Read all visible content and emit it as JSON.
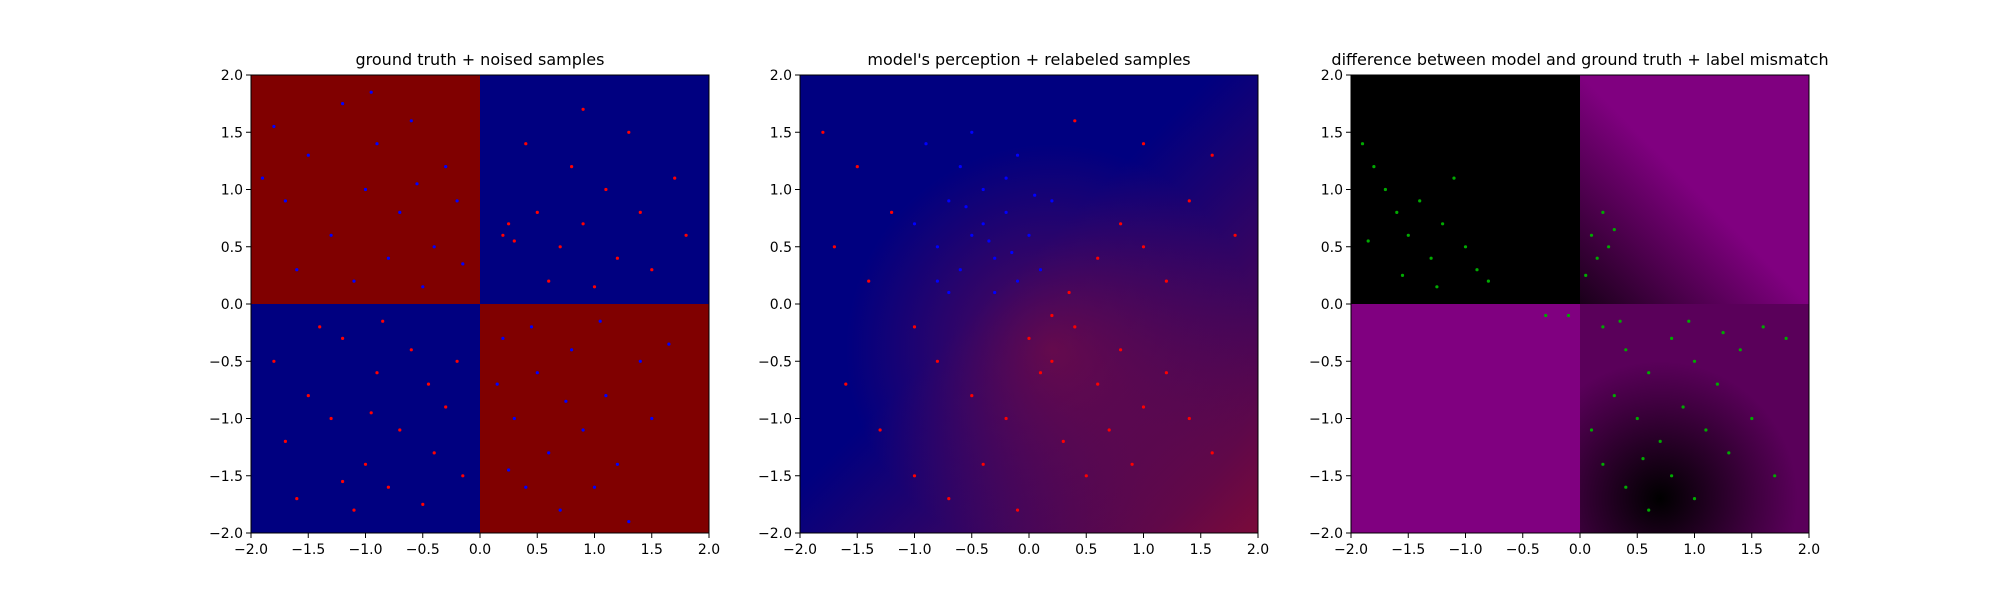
{
  "chart_data": [
    {
      "type": "scatter",
      "title": "ground truth + noised samples",
      "xlabel": "",
      "ylabel": "",
      "xlim": [
        -2.0,
        2.0
      ],
      "ylim": [
        -2.0,
        2.0
      ],
      "xticks": [
        "−2.0",
        "−1.5",
        "−1.0",
        "−0.5",
        "0.0",
        "0.5",
        "1.0",
        "1.5",
        "2.0"
      ],
      "yticks": [
        "2.0",
        "1.5",
        "1.0",
        "0.5",
        "0.0",
        "−0.5",
        "−1.0",
        "−1.5",
        "−2.0"
      ],
      "grid": false,
      "background": {
        "kind": "quadrants",
        "top_left": "#800000",
        "top_right": "#000080",
        "bottom_left": "#000080",
        "bottom_right": "#800000"
      },
      "series": [
        {
          "color": "#0000ff",
          "points": [
            [
              -1.8,
              1.55
            ],
            [
              -1.5,
              1.3
            ],
            [
              -1.2,
              1.75
            ],
            [
              -0.9,
              1.4
            ],
            [
              -0.6,
              1.6
            ],
            [
              -0.3,
              1.2
            ],
            [
              -1.7,
              0.9
            ],
            [
              -1.3,
              0.6
            ],
            [
              -1.0,
              1.0
            ],
            [
              -0.7,
              0.8
            ],
            [
              -0.4,
              0.5
            ],
            [
              -0.2,
              0.9
            ],
            [
              -1.6,
              0.3
            ],
            [
              -1.1,
              0.2
            ],
            [
              -0.8,
              0.4
            ],
            [
              -0.5,
              0.15
            ],
            [
              -0.15,
              0.35
            ],
            [
              -1.9,
              1.1
            ],
            [
              -0.95,
              1.85
            ],
            [
              -0.55,
              1.05
            ],
            [
              0.2,
              -0.3
            ],
            [
              0.5,
              -0.6
            ],
            [
              0.8,
              -0.4
            ],
            [
              1.1,
              -0.8
            ],
            [
              1.4,
              -0.5
            ],
            [
              0.3,
              -1.0
            ],
            [
              0.6,
              -1.3
            ],
            [
              0.9,
              -1.1
            ],
            [
              1.2,
              -1.4
            ],
            [
              1.5,
              -1.0
            ],
            [
              0.4,
              -1.6
            ],
            [
              0.7,
              -1.8
            ],
            [
              1.0,
              -1.6
            ],
            [
              1.3,
              -1.9
            ],
            [
              0.15,
              -0.7
            ],
            [
              0.45,
              -0.2
            ],
            [
              0.75,
              -0.85
            ],
            [
              1.65,
              -0.35
            ],
            [
              1.05,
              -0.15
            ],
            [
              0.25,
              -1.45
            ]
          ]
        },
        {
          "color": "#ff0000",
          "points": [
            [
              0.2,
              0.6
            ],
            [
              0.3,
              0.55
            ],
            [
              0.25,
              0.7
            ],
            [
              0.5,
              0.8
            ],
            [
              0.7,
              0.5
            ],
            [
              0.9,
              0.7
            ],
            [
              1.2,
              0.4
            ],
            [
              1.5,
              0.3
            ],
            [
              0.8,
              1.2
            ],
            [
              1.1,
              1.0
            ],
            [
              0.4,
              1.4
            ],
            [
              1.4,
              0.8
            ],
            [
              1.7,
              1.1
            ],
            [
              0.6,
              0.2
            ],
            [
              1.0,
              0.15
            ],
            [
              1.3,
              1.5
            ],
            [
              0.9,
              1.7
            ],
            [
              1.8,
              0.6
            ],
            [
              -1.8,
              -0.5
            ],
            [
              -1.5,
              -0.8
            ],
            [
              -1.2,
              -0.3
            ],
            [
              -0.9,
              -0.6
            ],
            [
              -0.6,
              -0.4
            ],
            [
              -0.3,
              -0.9
            ],
            [
              -1.7,
              -1.2
            ],
            [
              -1.3,
              -1.0
            ],
            [
              -1.0,
              -1.4
            ],
            [
              -0.7,
              -1.1
            ],
            [
              -0.4,
              -1.3
            ],
            [
              -0.2,
              -0.5
            ],
            [
              -1.6,
              -1.7
            ],
            [
              -1.1,
              -1.8
            ],
            [
              -0.8,
              -1.6
            ],
            [
              -0.5,
              -1.75
            ],
            [
              -0.15,
              -1.5
            ],
            [
              -1.4,
              -0.2
            ],
            [
              -0.85,
              -0.15
            ],
            [
              -0.45,
              -0.7
            ],
            [
              -1.2,
              -1.55
            ],
            [
              -0.95,
              -0.95
            ]
          ]
        }
      ]
    },
    {
      "type": "scatter",
      "title": "model's perception + relabeled samples",
      "xlabel": "",
      "ylabel": "",
      "xlim": [
        -2.0,
        2.0
      ],
      "ylim": [
        -2.0,
        2.0
      ],
      "xticks": [
        "−2.0",
        "−1.5",
        "−1.0",
        "−0.5",
        "0.0",
        "0.5",
        "1.0",
        "1.5",
        "2.0"
      ],
      "yticks": [
        "2.0",
        "1.5",
        "1.0",
        "0.5",
        "0.0",
        "−0.5",
        "−1.0",
        "−1.5",
        "−2.0"
      ],
      "grid": false,
      "background": {
        "kind": "gradient",
        "base": "#000080",
        "accent": "#7a0a3a"
      },
      "series": [
        {
          "color": "#0000ff",
          "points": [
            [
              -0.6,
              1.2
            ],
            [
              -0.4,
              1.0
            ],
            [
              -0.2,
              0.8
            ],
            [
              -0.5,
              0.6
            ],
            [
              -0.3,
              0.4
            ],
            [
              -0.1,
              0.2
            ],
            [
              -0.7,
              0.9
            ],
            [
              -0.8,
              0.5
            ],
            [
              -0.6,
              0.3
            ],
            [
              -0.4,
              0.7
            ],
            [
              -0.2,
              1.1
            ],
            [
              0.0,
              0.6
            ],
            [
              0.1,
              0.3
            ],
            [
              -0.9,
              1.4
            ],
            [
              -0.5,
              1.5
            ],
            [
              -0.3,
              0.1
            ],
            [
              -0.7,
              0.1
            ],
            [
              0.2,
              0.9
            ],
            [
              -0.1,
              1.3
            ],
            [
              -0.8,
              0.2
            ],
            [
              -0.35,
              0.55
            ],
            [
              -0.55,
              0.85
            ],
            [
              -0.15,
              0.45
            ],
            [
              -1.0,
              0.7
            ],
            [
              0.05,
              0.95
            ]
          ]
        },
        {
          "color": "#ff0000",
          "points": [
            [
              -1.8,
              1.5
            ],
            [
              -1.5,
              1.2
            ],
            [
              -1.2,
              0.8
            ],
            [
              -1.7,
              0.5
            ],
            [
              -1.4,
              0.2
            ],
            [
              -1.0,
              -0.2
            ],
            [
              -0.8,
              -0.5
            ],
            [
              -0.5,
              -0.8
            ],
            [
              -0.2,
              -1.0
            ],
            [
              0.0,
              -0.3
            ],
            [
              0.2,
              -0.5
            ],
            [
              0.4,
              -0.2
            ],
            [
              0.6,
              -0.7
            ],
            [
              0.8,
              -0.4
            ],
            [
              1.0,
              -0.9
            ],
            [
              0.3,
              -1.2
            ],
            [
              0.5,
              -1.5
            ],
            [
              0.7,
              -1.1
            ],
            [
              0.9,
              -1.4
            ],
            [
              1.2,
              -0.6
            ],
            [
              1.4,
              -1.0
            ],
            [
              1.6,
              -1.3
            ],
            [
              0.6,
              0.4
            ],
            [
              0.8,
              0.7
            ],
            [
              1.0,
              0.5
            ],
            [
              1.2,
              0.2
            ],
            [
              1.4,
              0.9
            ],
            [
              1.6,
              1.3
            ],
            [
              1.8,
              0.6
            ],
            [
              0.4,
              1.6
            ],
            [
              1.0,
              1.4
            ],
            [
              -1.6,
              -0.7
            ],
            [
              -1.3,
              -1.1
            ],
            [
              -1.0,
              -1.5
            ],
            [
              -0.7,
              -1.7
            ],
            [
              -0.4,
              -1.4
            ],
            [
              -0.1,
              -1.8
            ],
            [
              0.2,
              -0.1
            ],
            [
              0.1,
              -0.6
            ],
            [
              0.35,
              0.1
            ]
          ]
        }
      ]
    },
    {
      "type": "scatter",
      "title": "difference between model and ground truth + label mismatch",
      "xlabel": "",
      "ylabel": "",
      "xlim": [
        -2.0,
        2.0
      ],
      "ylim": [
        -2.0,
        2.0
      ],
      "xticks": [
        "−2.0",
        "−1.5",
        "−1.0",
        "−0.5",
        "0.0",
        "0.5",
        "1.0",
        "1.5",
        "2.0"
      ],
      "yticks": [
        "2.0",
        "1.5",
        "1.0",
        "0.5",
        "0.0",
        "−0.5",
        "−1.0",
        "−1.5",
        "−2.0"
      ],
      "grid": false,
      "background": {
        "kind": "difference",
        "black": "#000000",
        "magenta": "#800080"
      },
      "series": [
        {
          "color": "#00aa00",
          "points": [
            [
              -1.9,
              1.4
            ],
            [
              -1.8,
              1.2
            ],
            [
              -1.7,
              1.0
            ],
            [
              -1.6,
              0.8
            ],
            [
              -1.5,
              0.6
            ],
            [
              -1.4,
              0.9
            ],
            [
              -1.3,
              0.4
            ],
            [
              -1.2,
              0.7
            ],
            [
              -1.1,
              1.1
            ],
            [
              -1.0,
              0.5
            ],
            [
              -0.9,
              0.3
            ],
            [
              -0.8,
              0.2
            ],
            [
              -1.85,
              0.55
            ],
            [
              -1.55,
              0.25
            ],
            [
              -1.25,
              0.15
            ],
            [
              0.1,
              0.6
            ],
            [
              0.15,
              0.4
            ],
            [
              0.2,
              0.8
            ],
            [
              0.25,
              0.5
            ],
            [
              0.3,
              0.65
            ],
            [
              0.05,
              0.25
            ],
            [
              0.2,
              -0.2
            ],
            [
              0.4,
              -0.4
            ],
            [
              0.6,
              -0.6
            ],
            [
              0.8,
              -0.3
            ],
            [
              1.0,
              -0.5
            ],
            [
              1.2,
              -0.7
            ],
            [
              1.4,
              -0.4
            ],
            [
              1.6,
              -0.2
            ],
            [
              1.8,
              -0.3
            ],
            [
              0.3,
              -0.8
            ],
            [
              0.5,
              -1.0
            ],
            [
              0.7,
              -1.2
            ],
            [
              0.9,
              -0.9
            ],
            [
              1.1,
              -1.1
            ],
            [
              1.3,
              -1.3
            ],
            [
              1.5,
              -1.0
            ],
            [
              0.2,
              -1.4
            ],
            [
              0.4,
              -1.6
            ],
            [
              0.6,
              -1.8
            ],
            [
              0.8,
              -1.5
            ],
            [
              1.0,
              -1.7
            ],
            [
              1.7,
              -1.5
            ],
            [
              0.1,
              -1.1
            ],
            [
              -0.1,
              -0.1
            ],
            [
              -0.3,
              -0.1
            ],
            [
              0.35,
              -0.15
            ],
            [
              1.25,
              -0.25
            ],
            [
              0.55,
              -1.35
            ],
            [
              0.95,
              -0.15
            ]
          ]
        }
      ]
    }
  ]
}
